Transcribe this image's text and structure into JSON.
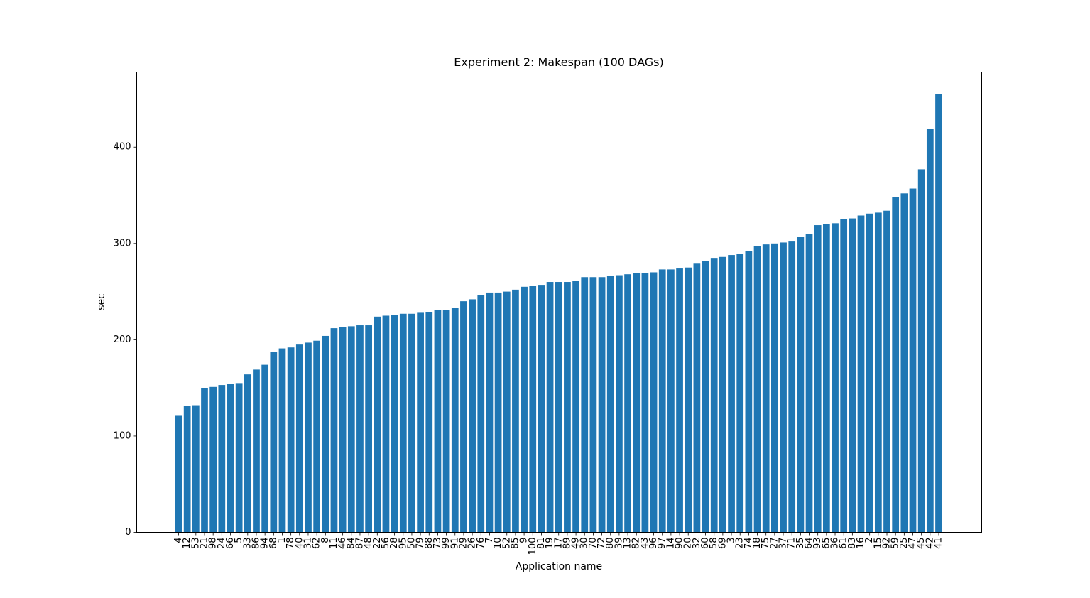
{
  "chart_data": {
    "type": "bar",
    "title": "Experiment 2: Makespan (100 DAGs)",
    "xlabel": "Application name",
    "ylabel": "sec",
    "ylim": [
      0,
      478
    ],
    "yticks": [
      0,
      100,
      200,
      300,
      400
    ],
    "grid": false,
    "bar_color": "#1f77b4",
    "categories": [
      "4",
      "12",
      "53",
      "21",
      "98",
      "24",
      "66",
      "5",
      "33",
      "86",
      "94",
      "68",
      "1",
      "78",
      "40",
      "31",
      "62",
      "8",
      "11",
      "46",
      "84",
      "87",
      "48",
      "22",
      "56",
      "28",
      "95",
      "50",
      "79",
      "88",
      "73",
      "99",
      "91",
      "29",
      "26",
      "76",
      "7",
      "10",
      "52",
      "85",
      "9",
      "100",
      "81",
      "19",
      "17",
      "89",
      "49",
      "30",
      "70",
      "72",
      "80",
      "39",
      "13",
      "82",
      "43",
      "96",
      "97",
      "14",
      "90",
      "20",
      "32",
      "60",
      "58",
      "69",
      "3",
      "23",
      "74",
      "18",
      "75",
      "27",
      "37",
      "71",
      "35",
      "64",
      "93",
      "65",
      "36",
      "61",
      "83",
      "16",
      "2",
      "15",
      "92",
      "59",
      "25",
      "47",
      "45",
      "42",
      "41"
    ],
    "values": [
      121,
      131,
      132,
      150,
      151,
      153,
      154,
      155,
      164,
      169,
      174,
      187,
      191,
      192,
      195,
      197,
      199,
      204,
      212,
      213,
      214,
      215,
      215,
      224,
      225,
      226,
      227,
      227,
      228,
      229,
      231,
      231,
      233,
      240,
      242,
      246,
      249,
      249,
      250,
      252,
      255,
      256,
      257,
      260,
      260,
      260,
      261,
      265,
      265,
      265,
      266,
      267,
      268,
      269,
      269,
      270,
      273,
      273,
      274,
      275,
      279,
      282,
      285,
      286,
      288,
      289,
      292,
      297,
      299,
      300,
      301,
      302,
      307,
      310,
      319,
      320,
      321,
      325,
      326,
      329,
      331,
      332,
      334,
      348,
      352,
      357,
      377,
      419,
      455
    ]
  }
}
